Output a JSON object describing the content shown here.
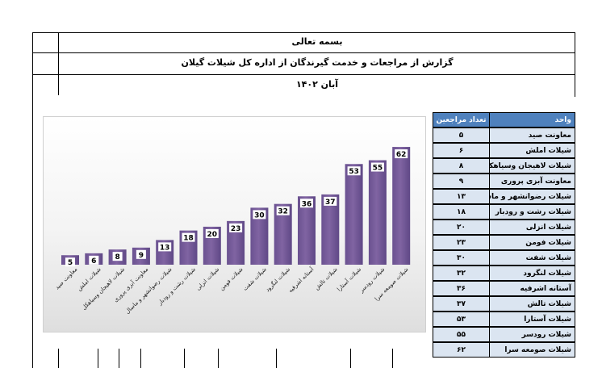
{
  "header": {
    "invocation": "بسمه تعالی",
    "report_title": "گزارش از مراجعات و خدمت گیرندگان از اداره کل شیلات گیلان",
    "period": "آبان ۱۴۰۲"
  },
  "table": {
    "col_unit": "واحد",
    "col_count": "تعداد مراجعین",
    "rows": [
      {
        "unit": "معاونت صید",
        "count": "۵"
      },
      {
        "unit": "شیلات املش",
        "count": "۶"
      },
      {
        "unit": "شیلات لاهیجان وسیاهکل",
        "count": "۸"
      },
      {
        "unit": "معاونت آبزی پروری",
        "count": "۹"
      },
      {
        "unit": "شیلات رضوانشهر و ماسال",
        "count": "۱۳"
      },
      {
        "unit": "شیلات رشت و رودبار",
        "count": "۱۸"
      },
      {
        "unit": "شیلات انزلی",
        "count": "۲۰"
      },
      {
        "unit": "شیلات فومن",
        "count": "۲۳"
      },
      {
        "unit": "شیلات شفت",
        "count": "۳۰"
      },
      {
        "unit": "شیلات لنگرود",
        "count": "۳۲"
      },
      {
        "unit": "آستانه اشرفیه",
        "count": "۳۶"
      },
      {
        "unit": "شیلات تالش",
        "count": "۳۷"
      },
      {
        "unit": "شیلات آستارا",
        "count": "۵۳"
      },
      {
        "unit": "شیلات رودسر",
        "count": "۵۵"
      },
      {
        "unit": "شیلات صومعه سرا",
        "count": "۶۲"
      }
    ]
  },
  "chart_data": {
    "type": "bar",
    "categories": [
      "معاونت صید",
      "شیلات املش",
      "شیلات لاهیجان وسیاهکل",
      "معاونت آبزی پروری",
      "شیلات رضوانشهر و ماسال",
      "شیلات رشت و رودبار",
      "شیلات انزلی",
      "شیلات فومن",
      "شیلات شفت",
      "شیلات لنگرود",
      "آستانه اشرفیه",
      "شیلات تالش",
      "شیلات آستارا",
      "شیلات رودسر",
      "شیلات صومعه سرا"
    ],
    "values": [
      5,
      6,
      8,
      9,
      13,
      18,
      20,
      23,
      30,
      32,
      36,
      37,
      53,
      55,
      62
    ],
    "ylim": [
      0,
      65
    ],
    "grid": false,
    "legend": "none",
    "bar_color": "#8064a2",
    "label_box_color": "#ffffff"
  }
}
